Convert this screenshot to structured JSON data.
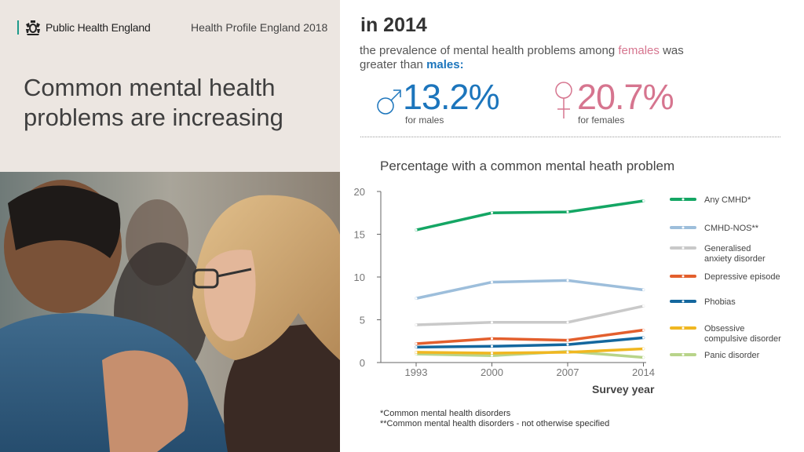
{
  "header": {
    "org_name": "Public Health England",
    "profile_title": "Health Profile England 2018",
    "headline": "Common mental health problems are increasing"
  },
  "summary": {
    "year_heading": "in 2014",
    "line_start": "the prevalence of mental health problems among ",
    "females_word": "females",
    "line_mid": " was greater than ",
    "males_word": "males:",
    "male_value": "13.2%",
    "male_label": "for males",
    "female_value": "20.7%",
    "female_label": "for females",
    "male_icon": "male-symbol-icon",
    "female_icon": "female-symbol-icon"
  },
  "colors": {
    "male": "#1c75bc",
    "female": "#d6758f",
    "accent": "#1d9a8a"
  },
  "chart_data": {
    "type": "line",
    "title": "Percentage with a common mental heath problem",
    "xlabel": "Survey year",
    "ylabel": "",
    "x": [
      "1993",
      "2000",
      "2007",
      "2014"
    ],
    "ylim": [
      0,
      20
    ],
    "yticks": [
      "0",
      "5",
      "10",
      "15",
      "20"
    ],
    "grid": false,
    "legend_position": "right",
    "series": [
      {
        "name": "Any CMHD*",
        "values": [
          15.5,
          17.5,
          17.6,
          18.9
        ],
        "color": "#14a664"
      },
      {
        "name": "CMHD-NOS**",
        "values": [
          7.5,
          9.4,
          9.6,
          8.5
        ],
        "color": "#9dbedb"
      },
      {
        "name": "Generalised anxiety disorder",
        "values": [
          4.4,
          4.7,
          4.7,
          6.6
        ],
        "color": "#c9c9c9"
      },
      {
        "name": "Depressive episode",
        "values": [
          2.2,
          2.8,
          2.6,
          3.8
        ],
        "color": "#e35f2d"
      },
      {
        "name": "Phobias",
        "values": [
          1.8,
          1.9,
          2.1,
          2.9
        ],
        "color": "#14679e"
      },
      {
        "name": "Obsessive compulsive disorder",
        "values": [
          1.2,
          1.1,
          1.2,
          1.6
        ],
        "color": "#f0b721"
      },
      {
        "name": "Panic disorder",
        "values": [
          1.0,
          0.8,
          1.3,
          0.6
        ],
        "color": "#b8d48a"
      }
    ]
  },
  "footnotes": [
    "*Common mental health disorders",
    "**Common mental health disorders - not otherwise specified"
  ]
}
